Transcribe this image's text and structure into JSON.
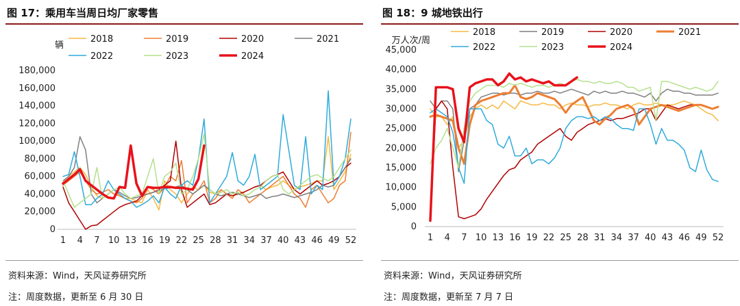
{
  "panels": [
    {
      "title": "图 17：乘用车当周日均厂家零售",
      "source": "资料来源：Wind，天风证券研究所",
      "note": "注：周度数据，更新至 6 月 30 日"
    },
    {
      "title": "图 18：9 城地铁出行",
      "source": "资料来源：Wind，天风证券研究所",
      "note": "注：周度数据，更新至 7 月 7 日"
    }
  ],
  "chart_data": [
    {
      "type": "line",
      "title": "乘用车当周日均厂家零售",
      "ylabel": "辆",
      "xlabel": "",
      "ylim": [
        0,
        180000
      ],
      "yticks": [
        "0",
        "20,000",
        "40,000",
        "60,000",
        "80,000",
        "100,000",
        "120,000",
        "140,000",
        "160,000",
        "180,000"
      ],
      "xticks": [
        1,
        4,
        7,
        10,
        13,
        16,
        19,
        22,
        25,
        28,
        31,
        34,
        37,
        40,
        43,
        46,
        49,
        52
      ],
      "legend_position": "top",
      "series": [
        {
          "name": "2018",
          "color": "#F5B942",
          "width": 1.5,
          "x_start": 1,
          "values": [
            55000,
            60000,
            65000,
            70000,
            62000,
            48000,
            38000,
            35000,
            40000,
            45000,
            38000,
            35000,
            35000,
            32000,
            30000,
            45000,
            35000,
            22000,
            55000,
            45000,
            40000,
            30000,
            40000,
            48000,
            45000,
            50000,
            42000,
            40000,
            45000,
            40000,
            38000,
            40000,
            42000,
            45000,
            48000,
            50000,
            45000,
            48000,
            50000,
            55000,
            50000,
            45000,
            48000,
            50000,
            52000,
            55000,
            55000,
            105000,
            45000,
            55000,
            65000,
            85000
          ]
        },
        {
          "name": "2019",
          "color": "#ED7D31",
          "width": 1.5,
          "x_start": 1,
          "values": [
            50000,
            55000,
            60000,
            65000,
            55000,
            45000,
            40000,
            42000,
            45000,
            40000,
            38000,
            35000,
            32000,
            30000,
            35000,
            48000,
            45000,
            40000,
            48000,
            60000,
            55000,
            78000,
            30000,
            40000,
            45000,
            55000,
            30000,
            35000,
            45000,
            40000,
            35000,
            45000,
            40000,
            30000,
            35000,
            40000,
            45000,
            50000,
            55000,
            60000,
            50000,
            40000,
            35000,
            25000,
            45000,
            50000,
            40000,
            30000,
            35000,
            50000,
            55000,
            110000
          ]
        },
        {
          "name": "2020",
          "color": "#B00000",
          "width": 1.5,
          "x_start": 1,
          "values": [
            48000,
            30000,
            20000,
            10000,
            0,
            4000,
            5000,
            10000,
            15000,
            20000,
            25000,
            28000,
            30000,
            32000,
            38000,
            40000,
            42000,
            45000,
            50000,
            55000,
            100000,
            45000,
            25000,
            30000,
            35000,
            40000,
            28000,
            30000,
            35000,
            40000,
            38000,
            40000,
            42000,
            45000,
            48000,
            50000,
            55000,
            60000,
            62000,
            65000,
            55000,
            45000,
            40000,
            45000,
            50000,
            55000,
            50000,
            52000,
            55000,
            60000,
            70000,
            75000
          ]
        },
        {
          "name": "2021",
          "color": "#7F7F7F",
          "width": 1.5,
          "x_start": 1,
          "values": [
            55000,
            60000,
            70000,
            105000,
            90000,
            40000,
            30000,
            35000,
            40000,
            45000,
            42000,
            38000,
            35000,
            36000,
            38000,
            40000,
            42000,
            44000,
            46000,
            47000,
            48000,
            50000,
            45000,
            40000,
            45000,
            50000,
            45000,
            40000,
            38000,
            40000,
            42000,
            40000,
            38000,
            36000,
            38000,
            40000,
            35000,
            37000,
            38000,
            40000,
            38000,
            36000,
            38000,
            40000,
            42000,
            45000,
            50000,
            48000,
            50000,
            60000,
            70000,
            80000
          ]
        },
        {
          "name": "2022",
          "color": "#2EAADC",
          "width": 1.5,
          "x_start": 1,
          "values": [
            60000,
            62000,
            88000,
            60000,
            28000,
            28000,
            35000,
            40000,
            55000,
            45000,
            40000,
            35000,
            32000,
            25000,
            28000,
            32000,
            38000,
            30000,
            48000,
            40000,
            35000,
            50000,
            55000,
            50000,
            80000,
            125000,
            30000,
            40000,
            50000,
            60000,
            87000,
            55000,
            50000,
            60000,
            85000,
            45000,
            50000,
            55000,
            60000,
            130000,
            90000,
            50000,
            45000,
            105000,
            40000,
            50000,
            45000,
            157000,
            50000,
            60000,
            80000,
            125000
          ]
        },
        {
          "name": "2023",
          "color": "#B4E08C",
          "width": 1.5,
          "x_start": 1,
          "values": [
            55000,
            40000,
            25000,
            30000,
            35000,
            40000,
            70000,
            35000,
            40000,
            45000,
            48000,
            40000,
            35000,
            38000,
            40000,
            60000,
            80000,
            40000,
            60000,
            65000,
            75000,
            40000,
            45000,
            60000,
            80000,
            108000,
            45000,
            40000,
            42000,
            45000,
            40000,
            42000,
            38000,
            40000,
            45000,
            48000,
            55000,
            60000,
            62000,
            45000,
            40000,
            45000,
            50000,
            55000,
            60000,
            62000,
            58000,
            55000,
            60000,
            70000,
            80000,
            90000
          ]
        },
        {
          "name": "2024",
          "color": "#E8121B",
          "width": 3.5,
          "x_start": 1,
          "values": [
            52000,
            57000,
            62000,
            68000,
            55000,
            50000,
            45000,
            40000,
            36000,
            35000,
            48000,
            47000,
            95000,
            52000,
            38000,
            48000,
            47000,
            47000,
            48000,
            48000,
            47000,
            47000,
            46000,
            45000,
            57000,
            95000
          ]
        }
      ]
    },
    {
      "type": "line",
      "title": "9 城地铁出行",
      "ylabel": "万人次/周",
      "xlabel": "",
      "ylim": [
        0,
        45000
      ],
      "yticks": [
        "0",
        "5,000",
        "10,000",
        "15,000",
        "20,000",
        "25,000",
        "30,000",
        "35,000",
        "40,000",
        "45,000"
      ],
      "xticks": [
        1,
        4,
        7,
        10,
        13,
        16,
        19,
        22,
        25,
        28,
        31,
        34,
        37,
        40,
        43,
        46,
        49,
        52
      ],
      "legend_position": "top",
      "series": [
        {
          "name": "2018",
          "color": "#F5B942",
          "width": 1.5,
          "x_start": 1,
          "values": [
            30000,
            28000,
            28000,
            26000,
            28000,
            20000,
            22000,
            28000,
            30000,
            31000,
            30000,
            31000,
            30000,
            32000,
            31000,
            30000,
            32000,
            31500,
            31000,
            31000,
            31500,
            31000,
            31000,
            30000,
            31000,
            31500,
            31000,
            31000,
            30500,
            31000,
            31000,
            31500,
            31000,
            31000,
            30500,
            30000,
            31000,
            31500,
            31000,
            31000,
            31500,
            31000,
            31000,
            31000,
            31500,
            32000,
            31500,
            31000,
            30000,
            29000,
            28500,
            27000
          ]
        },
        {
          "name": "2019",
          "color": "#7F7F7F",
          "width": 1.5,
          "x_start": 1,
          "values": [
            32000,
            30000,
            32000,
            32000,
            30000,
            14000,
            22000,
            30000,
            31000,
            33000,
            33500,
            34000,
            34000,
            33500,
            34000,
            34000,
            33500,
            34000,
            34000,
            34500,
            34000,
            34000,
            34500,
            34000,
            34500,
            35000,
            34500,
            34000,
            33500,
            34500,
            34000,
            34500,
            34000,
            34000,
            34500,
            34000,
            34000,
            33500,
            33000,
            34000,
            32000,
            34000,
            35000,
            34500,
            34500,
            34000,
            34000,
            33500,
            33500,
            33500,
            33500,
            34000
          ]
        },
        {
          "name": "2020",
          "color": "#B00000",
          "width": 1.5,
          "x_start": 1,
          "values": [
            2000,
            30000,
            32000,
            30000,
            15000,
            2500,
            2000,
            2500,
            3000,
            4500,
            7000,
            9000,
            11000,
            13000,
            14500,
            15000,
            17000,
            18000,
            19000,
            21000,
            22000,
            23000,
            24000,
            25000,
            23000,
            22000,
            24000,
            25000,
            26000,
            26500,
            27000,
            27500,
            27000,
            27500,
            27500,
            28000,
            28500,
            29000,
            30000,
            30000,
            27000,
            29000,
            31000,
            30500,
            30000,
            30500,
            31000,
            31000,
            31000,
            30500,
            30000,
            30500
          ]
        },
        {
          "name": "2021",
          "color": "#ED7D31",
          "width": 3,
          "x_start": 1,
          "values": [
            28000,
            28500,
            28000,
            27500,
            27000,
            20000,
            16000,
            26000,
            31000,
            32000,
            32500,
            33000,
            33500,
            34000,
            34000,
            36000,
            33000,
            32500,
            33000,
            34000,
            33500,
            33000,
            32500,
            31000,
            29000,
            31000,
            32000,
            33000,
            30000,
            27000,
            26000,
            27500,
            28500,
            30000,
            30500,
            31000,
            30000,
            26000,
            28000,
            30000,
            30500,
            31000,
            30500,
            30000,
            29500,
            30000,
            30500,
            31000,
            31000,
            30500,
            30000,
            30500
          ]
        },
        {
          "name": "2022",
          "color": "#2EAADC",
          "width": 1.5,
          "x_start": 1,
          "values": [
            29000,
            30000,
            29000,
            28000,
            24000,
            15000,
            11000,
            30000,
            30000,
            30000,
            27000,
            26000,
            21000,
            20000,
            23000,
            18000,
            18000,
            20000,
            16000,
            17000,
            17000,
            16000,
            17500,
            20000,
            25000,
            27000,
            28000,
            28000,
            27500,
            28000,
            27000,
            28000,
            27500,
            26000,
            25000,
            25000,
            24500,
            30000,
            30000,
            26000,
            21000,
            25000,
            22000,
            22000,
            21000,
            19500,
            15000,
            14000,
            19500,
            14500,
            12000,
            11500
          ]
        },
        {
          "name": "2023",
          "color": "#B4E08C",
          "width": 1.5,
          "x_start": 1,
          "values": [
            16000,
            20000,
            22000,
            25000,
            20000,
            15000,
            25000,
            32000,
            34000,
            35000,
            36000,
            36000,
            36000,
            35500,
            36500,
            36000,
            36500,
            36000,
            35500,
            36000,
            36000,
            35500,
            36000,
            36500,
            36000,
            37000,
            37500,
            37000,
            37000,
            36500,
            37000,
            36500,
            36500,
            37000,
            36500,
            35500,
            35500,
            34500,
            35000,
            35500,
            27000,
            37000,
            37000,
            36500,
            36000,
            35500,
            35000,
            35500,
            35000,
            34500,
            35000,
            37000
          ]
        },
        {
          "name": "2024",
          "color": "#E8121B",
          "width": 3.5,
          "x_start": 1,
          "values": [
            1500,
            35500,
            35500,
            35500,
            35000,
            25000,
            21500,
            35500,
            36500,
            37000,
            37500,
            37500,
            36000,
            37000,
            39000,
            37500,
            38000,
            37000,
            37500,
            37000,
            36500,
            37000,
            36000,
            36000,
            36000,
            37000,
            38000
          ]
        }
      ]
    }
  ]
}
